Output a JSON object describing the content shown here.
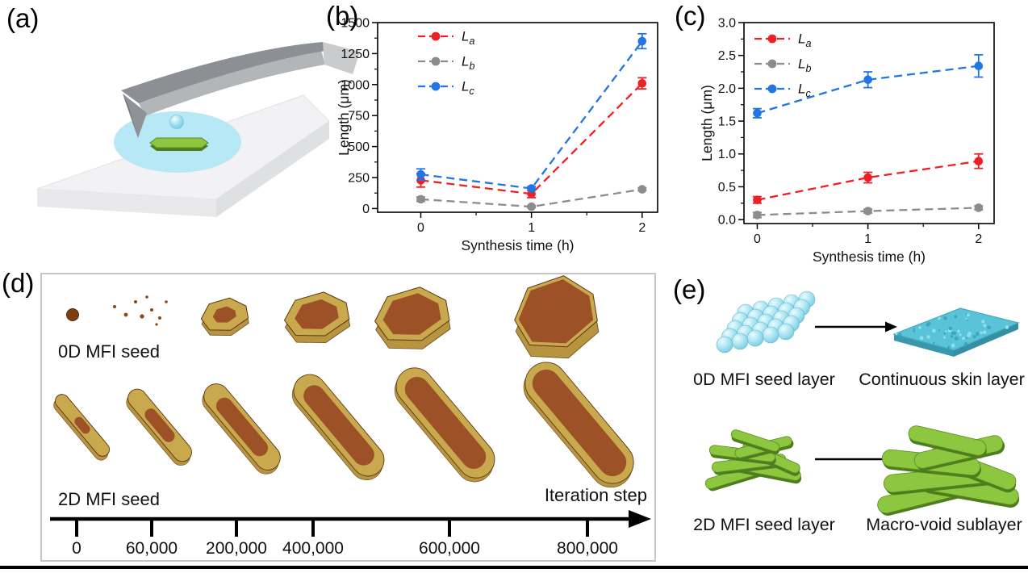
{
  "panels": {
    "a": {
      "label": "(a)"
    },
    "b": {
      "label": "(b)"
    },
    "c": {
      "label": "(c)"
    },
    "d": {
      "label": "(d)",
      "row_top_label": "0D MFI seed",
      "row_bottom_label": "2D MFI seed",
      "axis_label": "Iteration step",
      "axis_ticks": [
        "0",
        "60,000",
        "200,000",
        "400,000",
        "600,000",
        "800,000"
      ]
    },
    "e": {
      "label": "(e)",
      "top_left_label": "0D MFI seed layer",
      "top_right_label": "Continuous skin layer",
      "bottom_left_label": "2D MFI seed layer",
      "bottom_right_label": "Macro-void sublayer"
    }
  },
  "chart_data": [
    {
      "id": "b",
      "type": "line",
      "title": "",
      "xlabel": "Synthesis time (h)",
      "ylabel": "Length (μm)",
      "x": [
        0,
        1,
        2
      ],
      "xticks": [
        0,
        1,
        2
      ],
      "xlim": [
        -0.39,
        2.14
      ],
      "ylim": [
        -30,
        1500
      ],
      "yticks": [
        0,
        250,
        500,
        750,
        1000,
        1250,
        1500
      ],
      "ytick_decimals": 0,
      "grid": false,
      "legend_position": "top-left",
      "series": [
        {
          "name": "La",
          "legend_main": "L",
          "legend_sub": "a",
          "color": "#ee2026",
          "values": [
            228,
            118,
            1010
          ],
          "errors": [
            55,
            30,
            45
          ]
        },
        {
          "name": "Lb",
          "legend_main": "L",
          "legend_sub": "b",
          "color": "#8c8c8c",
          "values": [
            75,
            15,
            155
          ],
          "errors": [
            18,
            8,
            12
          ]
        },
        {
          "name": "Lc",
          "legend_main": "L",
          "legend_sub": "c",
          "color": "#2176e3",
          "values": [
            275,
            162,
            1350
          ],
          "errors": [
            45,
            15,
            60
          ]
        }
      ]
    },
    {
      "id": "c",
      "type": "line",
      "title": "",
      "xlabel": "Synthesis time (h)",
      "ylabel": "Length (μm)",
      "x": [
        0,
        1,
        2
      ],
      "xticks": [
        0,
        1,
        2
      ],
      "xlim": [
        -0.12,
        2.14
      ],
      "ylim": [
        -0.06,
        3.0
      ],
      "yticks": [
        0,
        0.5,
        1.0,
        1.5,
        2.0,
        2.5,
        3.0
      ],
      "ytick_decimals": 1,
      "grid": false,
      "legend_position": "top-left",
      "series": [
        {
          "name": "La",
          "legend_main": "L",
          "legend_sub": "a",
          "color": "#ee2026",
          "values": [
            0.3,
            0.64,
            0.89
          ],
          "errors": [
            0.05,
            0.08,
            0.11
          ]
        },
        {
          "name": "Lb",
          "legend_main": "L",
          "legend_sub": "b",
          "color": "#8c8c8c",
          "values": [
            0.07,
            0.13,
            0.18
          ],
          "errors": [
            0.04,
            0.03,
            0.03
          ]
        },
        {
          "name": "Lc",
          "legend_main": "L",
          "legend_sub": "c",
          "color": "#2176e3",
          "values": [
            1.62,
            2.13,
            2.34
          ],
          "errors": [
            0.07,
            0.12,
            0.17
          ]
        }
      ]
    }
  ],
  "art_colors": {
    "droplet": "#b7e8f6",
    "sphere_mid": "#9adeee",
    "sphere_edge": "#6fc3d8",
    "seed_green": "#8dc63f",
    "seed_green_dark": "#4e7d1e",
    "seed_green_stroke": "#5a8a22",
    "substrate_top": "#f2f2f4",
    "substrate_front": "#e9e9eb",
    "substrate_side": "#dfe0e2",
    "cantilever_top": "#8c9094",
    "cantilever_side": "#b3b6b9",
    "cantilever_end": "#c9cbcd",
    "tip_gray": "#8f9296",
    "crystal_top": "#9c5126",
    "crystal_rim": "#c9a94e",
    "crystal_side": "#b69440",
    "crystal_edge": "#5f3410",
    "skin_teal": "#59c4d8",
    "skin_teal_dark": "#3a98ad",
    "skin_speckle_dark": "#3fa5ba",
    "skin_speckle_light": "#8fe0ee",
    "arrow_black": "#000000",
    "frame_gray": "#c6c6c6"
  }
}
